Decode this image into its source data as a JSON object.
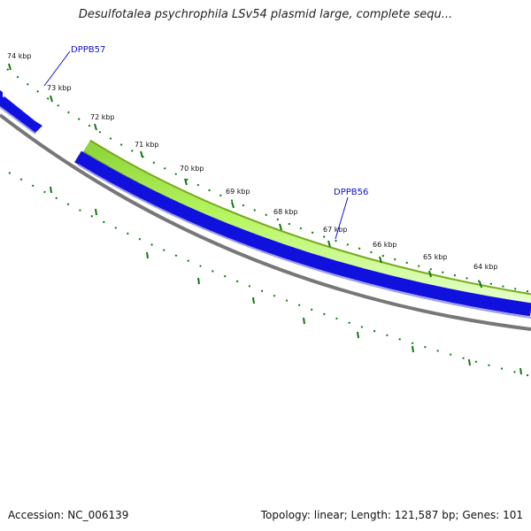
{
  "title": "Desulfotalea psychrophila LSv54 plasmid large, complete sequ...",
  "footer": {
    "accession": "Accession: NC_006139",
    "summary": "Topology: linear; Length: 121,587 bp; Genes: 101"
  },
  "ticks": [
    {
      "label": "74 kbp"
    },
    {
      "label": "73 kbp"
    },
    {
      "label": "72 kbp"
    },
    {
      "label": "71 kbp"
    },
    {
      "label": "70 kbp"
    },
    {
      "label": "69 kbp"
    },
    {
      "label": "68 kbp"
    },
    {
      "label": "67 kbp"
    },
    {
      "label": "66 kbp"
    },
    {
      "label": "65 kbp"
    },
    {
      "label": "64 kbp"
    }
  ],
  "features": [
    {
      "label": "DPPB57"
    },
    {
      "label": "DPPB56"
    }
  ],
  "colors": {
    "tick": "#117711",
    "gene_blue": "#1111dd",
    "gene_green_fill": "#aaf24a",
    "gene_green_edge": "#77aa22",
    "backbone": "#777777",
    "feature_label": "#1111cc"
  }
}
